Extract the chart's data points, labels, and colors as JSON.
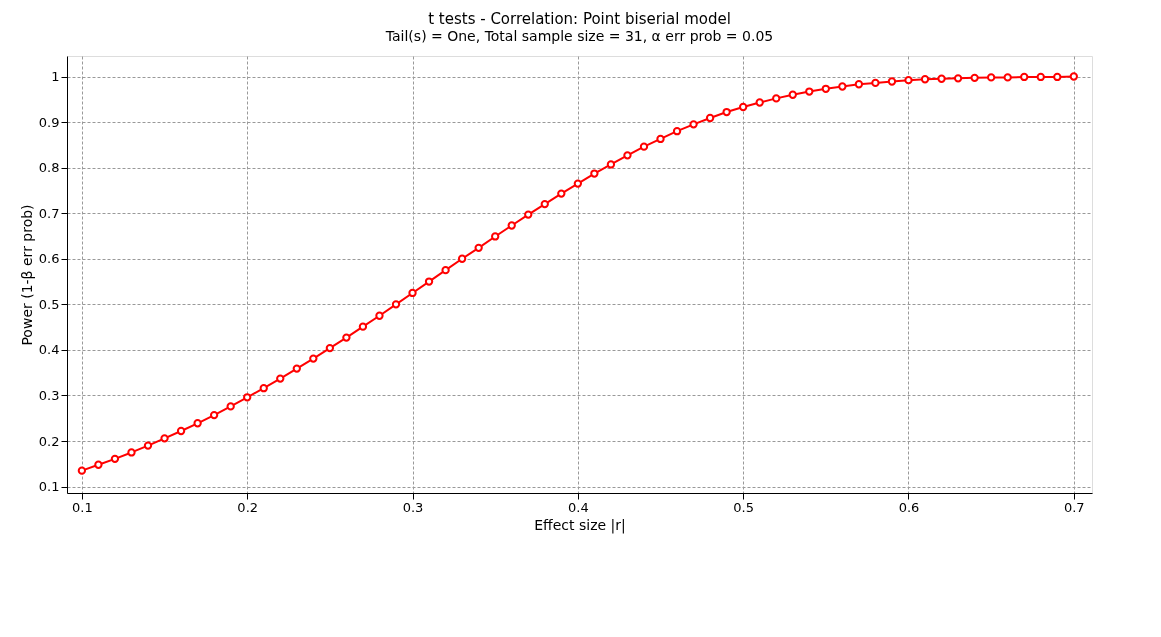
{
  "chart_data": {
    "type": "line",
    "title": "t tests - Correlation: Point biserial model",
    "subtitle": "Tail(s) = One, Total sample size = 31, α err prob = 0.05",
    "xlabel": "Effect size |r|",
    "ylabel": "Power (1-β err prob)",
    "x": [
      0.1,
      0.11,
      0.12,
      0.13,
      0.14,
      0.15,
      0.16,
      0.17,
      0.18,
      0.19,
      0.2,
      0.21,
      0.22,
      0.23,
      0.24,
      0.25,
      0.26,
      0.27,
      0.28,
      0.29,
      0.3,
      0.31,
      0.32,
      0.33,
      0.34,
      0.35,
      0.36,
      0.37,
      0.38,
      0.39,
      0.4,
      0.41,
      0.42,
      0.43,
      0.44,
      0.45,
      0.46,
      0.47,
      0.48,
      0.49,
      0.5,
      0.51,
      0.52,
      0.53,
      0.54,
      0.55,
      0.56,
      0.57,
      0.58,
      0.59,
      0.6,
      0.61,
      0.62,
      0.63,
      0.64,
      0.65,
      0.66,
      0.67,
      0.68,
      0.69,
      0.7
    ],
    "series": [
      {
        "color": "#ff0000",
        "values": [
          0.135,
          0.148,
          0.161,
          0.175,
          0.19,
          0.206,
          0.222,
          0.239,
          0.257,
          0.276,
          0.296,
          0.316,
          0.337,
          0.359,
          0.381,
          0.404,
          0.427,
          0.451,
          0.475,
          0.5,
          0.525,
          0.55,
          0.575,
          0.6,
          0.624,
          0.649,
          0.673,
          0.697,
          0.72,
          0.743,
          0.765,
          0.787,
          0.807,
          0.827,
          0.846,
          0.863,
          0.88,
          0.895,
          0.909,
          0.922,
          0.933,
          0.943,
          0.952,
          0.96,
          0.967,
          0.973,
          0.978,
          0.983,
          0.986,
          0.989,
          0.992,
          0.994,
          0.995,
          0.996,
          0.997,
          0.998,
          0.998,
          0.999,
          0.999,
          0.999,
          1.0
        ]
      }
    ],
    "xlim": [
      0.091,
      0.711
    ],
    "ylim": [
      0.086,
      1.045
    ],
    "xticks": [
      0.1,
      0.2,
      0.3,
      0.4,
      0.5,
      0.6,
      0.7
    ],
    "yticks": [
      0.1,
      0.2,
      0.3,
      0.4,
      0.5,
      0.6,
      0.7,
      0.8,
      0.9,
      1
    ],
    "grid": true,
    "marker": "circle",
    "line_style": "solid",
    "legend": false
  }
}
